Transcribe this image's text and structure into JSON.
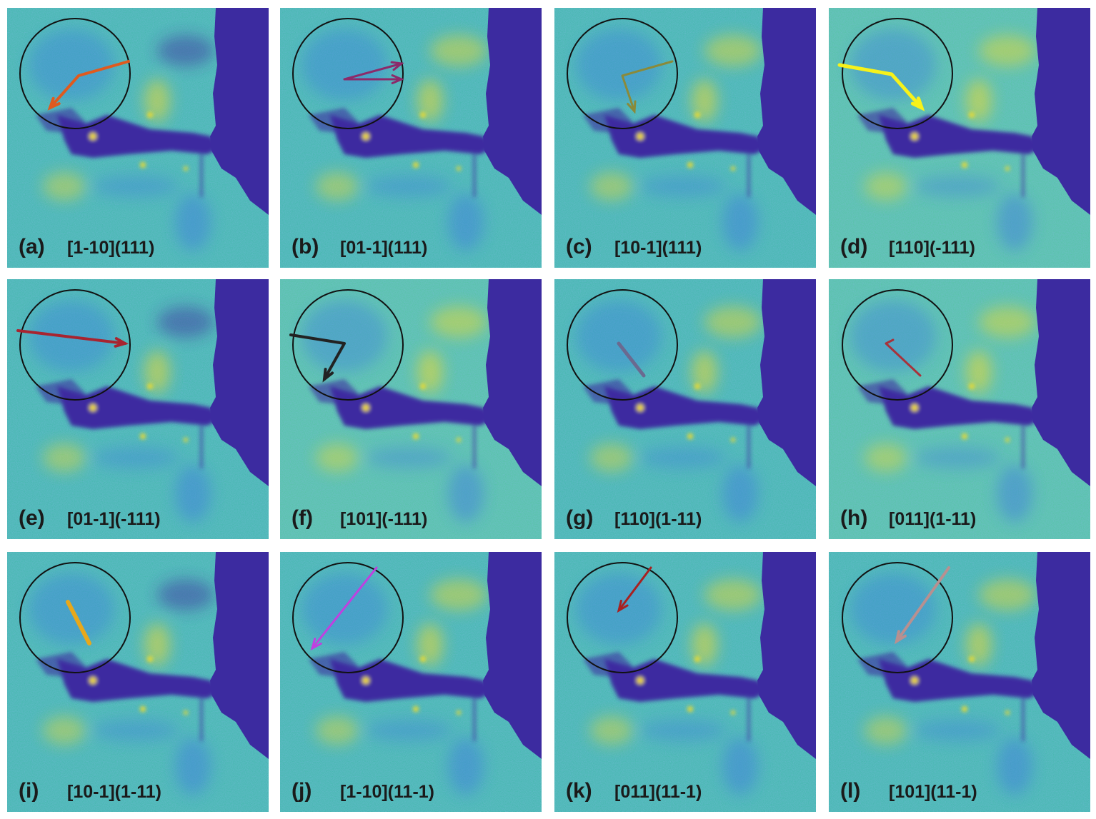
{
  "colors": {
    "background": "#3fb8a8",
    "background_light": "#52c4a0",
    "low": "#3c2ba0",
    "mid_blue": "#3a7be0",
    "high": "#f2dc2a",
    "circle": "#111111"
  },
  "panels": [
    {
      "id": "(a)",
      "caption": "[1-10](111)",
      "arrow_color": "#e05a1e",
      "arrow_kind": "bent-left-down"
    },
    {
      "id": "(b)",
      "caption": "[01-1](111)",
      "arrow_color": "#8c2a6a",
      "arrow_kind": "right-double"
    },
    {
      "id": "(c)",
      "caption": "[10-1](111)",
      "arrow_color": "#8a8a3a",
      "arrow_kind": "bent-down"
    },
    {
      "id": "(d)",
      "caption": "[110](-111)",
      "arrow_color": "#f7f21a",
      "arrow_kind": "bent-down-right"
    },
    {
      "id": "(e)",
      "caption": "[01-1](-111)",
      "arrow_color": "#a82430",
      "arrow_kind": "long-right"
    },
    {
      "id": "(f)",
      "caption": "[101](-111)",
      "arrow_color": "#222222",
      "arrow_kind": "bent-left"
    },
    {
      "id": "(g)",
      "caption": "[110](1-11)",
      "arrow_color": "#6a6a90",
      "arrow_kind": "short-diag"
    },
    {
      "id": "(h)",
      "caption": "[011](1-11)",
      "arrow_color": "#a8323a",
      "arrow_kind": "hook-diag"
    },
    {
      "id": "(i)",
      "caption": "[10-1](1-11)",
      "arrow_color": "#e8a81a",
      "arrow_kind": "thick-diag"
    },
    {
      "id": "(j)",
      "caption": "[1-10](11-1)",
      "arrow_color": "#c040e0",
      "arrow_kind": "long-left-down"
    },
    {
      "id": "(k)",
      "caption": "[011](11-1)",
      "arrow_color": "#a82020",
      "arrow_kind": "up-right"
    },
    {
      "id": "(l)",
      "caption": "[101](11-1)",
      "arrow_color": "#b89090",
      "arrow_kind": "long-left-down-2"
    }
  ]
}
